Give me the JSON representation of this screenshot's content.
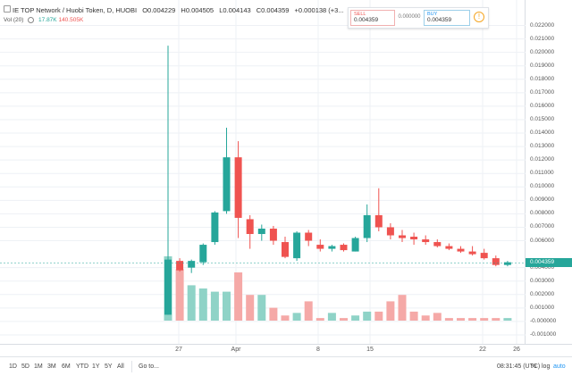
{
  "header": {
    "symbol": "IE TOP Network / Huobi Token, D, HUOBI",
    "open": "O0.004229",
    "high": "H0.004505",
    "low": "L0.004143",
    "close": "C0.004359",
    "change": "+0.000138 (+3...",
    "volume_label": "Vol (20)",
    "volume_buy": "17.87K",
    "volume_sell": "140.505K"
  },
  "trade_panel": {
    "sell_label": "SELL",
    "sell_value": "0.004359",
    "spread_value": "0.000000",
    "buy_label": "BUY",
    "buy_value": "0.004359",
    "icon": "alert-circle-icon"
  },
  "price_axis": {
    "ticks": [
      "0.022000",
      "0.021000",
      "0.020000",
      "0.019000",
      "0.018000",
      "0.017000",
      "0.016000",
      "0.015000",
      "0.014000",
      "0.013000",
      "0.012000",
      "0.011000",
      "0.010000",
      "0.009000",
      "0.008000",
      "0.007000",
      "0.006000",
      "0.004000",
      "0.003000",
      "0.002000",
      "0.001000",
      "-0.000000",
      "-0.001000"
    ],
    "last_price": "0.004359"
  },
  "time_axis": {
    "ticks": [
      "27",
      "Apr",
      "8",
      "15",
      "22",
      "26"
    ]
  },
  "toolbar": {
    "timeframes": [
      "1D",
      "5D",
      "1M",
      "3M",
      "6M",
      "YTD",
      "1Y",
      "5Y",
      "All"
    ],
    "goto_label": "Go to...",
    "clock": "08:31:45 (UTC)",
    "percent_label": "%",
    "log_label": "log",
    "auto_label": "auto"
  },
  "colors": {
    "up": "#26a69a",
    "down": "#ef5350",
    "up_volume": "#8fd3c7",
    "down_volume": "#f5a9a7",
    "grid": "#eef1f5"
  },
  "chart_data": {
    "type": "candlestick",
    "title": "",
    "ylabel": "",
    "ylim": [
      -0.0012,
      0.0223
    ],
    "x_ticks": [
      "27",
      "Apr",
      "8",
      "15",
      "22",
      "26"
    ],
    "candles": [
      {
        "o": 0.0005,
        "h": 0.0205,
        "l": 0.0005,
        "c": 0.0046
      },
      {
        "o": 0.0045,
        "h": 0.0047,
        "l": 0.0037,
        "c": 0.0038
      },
      {
        "o": 0.004,
        "h": 0.0046,
        "l": 0.0036,
        "c": 0.0045
      },
      {
        "o": 0.0044,
        "h": 0.0058,
        "l": 0.0042,
        "c": 0.0057
      },
      {
        "o": 0.0059,
        "h": 0.0082,
        "l": 0.0057,
        "c": 0.0081
      },
      {
        "o": 0.0082,
        "h": 0.0144,
        "l": 0.008,
        "c": 0.0122
      },
      {
        "o": 0.0122,
        "h": 0.0134,
        "l": 0.0062,
        "c": 0.0077
      },
      {
        "o": 0.0076,
        "h": 0.0079,
        "l": 0.0054,
        "c": 0.0065
      },
      {
        "o": 0.0065,
        "h": 0.0072,
        "l": 0.006,
        "c": 0.0069
      },
      {
        "o": 0.0069,
        "h": 0.0071,
        "l": 0.0057,
        "c": 0.006
      },
      {
        "o": 0.0059,
        "h": 0.0063,
        "l": 0.0047,
        "c": 0.0048
      },
      {
        "o": 0.0047,
        "h": 0.0067,
        "l": 0.0045,
        "c": 0.0066
      },
      {
        "o": 0.0066,
        "h": 0.0068,
        "l": 0.0056,
        "c": 0.006
      },
      {
        "o": 0.0057,
        "h": 0.0061,
        "l": 0.0052,
        "c": 0.0054
      },
      {
        "o": 0.0054,
        "h": 0.0057,
        "l": 0.0052,
        "c": 0.0056
      },
      {
        "o": 0.0057,
        "h": 0.0058,
        "l": 0.0052,
        "c": 0.0053
      },
      {
        "o": 0.0052,
        "h": 0.0063,
        "l": 0.0052,
        "c": 0.0062
      },
      {
        "o": 0.0062,
        "h": 0.0087,
        "l": 0.0059,
        "c": 0.0079
      },
      {
        "o": 0.0079,
        "h": 0.0099,
        "l": 0.0067,
        "c": 0.007
      },
      {
        "o": 0.007,
        "h": 0.0073,
        "l": 0.0061,
        "c": 0.0064
      },
      {
        "o": 0.0064,
        "h": 0.0068,
        "l": 0.0059,
        "c": 0.0062
      },
      {
        "o": 0.0063,
        "h": 0.0066,
        "l": 0.0057,
        "c": 0.0061
      },
      {
        "o": 0.0061,
        "h": 0.0064,
        "l": 0.0057,
        "c": 0.0059
      },
      {
        "o": 0.0059,
        "h": 0.0061,
        "l": 0.0055,
        "c": 0.0056
      },
      {
        "o": 0.0056,
        "h": 0.0058,
        "l": 0.0053,
        "c": 0.0054
      },
      {
        "o": 0.0054,
        "h": 0.0056,
        "l": 0.0051,
        "c": 0.0052
      },
      {
        "o": 0.0052,
        "h": 0.0056,
        "l": 0.0049,
        "c": 0.005
      },
      {
        "o": 0.0051,
        "h": 0.0054,
        "l": 0.0046,
        "c": 0.0047
      },
      {
        "o": 0.0047,
        "h": 0.0049,
        "l": 0.0041,
        "c": 0.0042
      },
      {
        "o": 0.0042,
        "h": 0.0045,
        "l": 0.0041,
        "c": 0.0044
      }
    ],
    "volume": [
      100,
      80,
      55,
      50,
      45,
      45,
      75,
      40,
      40,
      20,
      8,
      12,
      30,
      4,
      12,
      4,
      8,
      14,
      14,
      30,
      40,
      14,
      8,
      12,
      4,
      4,
      4,
      4,
      4,
      4
    ],
    "volume_max": 100,
    "last_price": 0.004359
  }
}
